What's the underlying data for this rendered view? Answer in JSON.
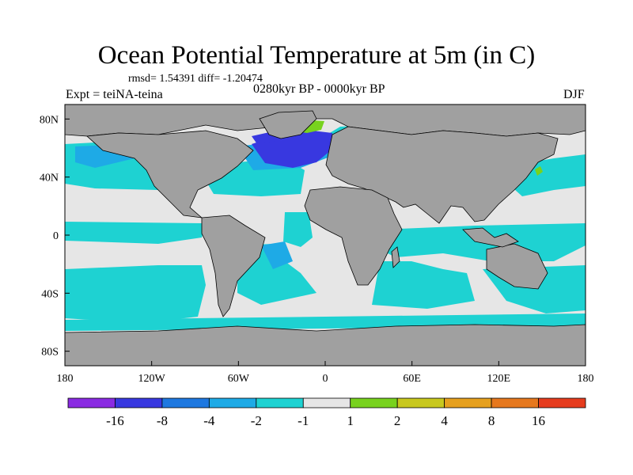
{
  "figure": {
    "title": "Ocean Potential Temperature at 5m (in C)",
    "stats": "rmsd= 1.54391 diff= -1.20474",
    "experiment": "Expt = teiNA-teina",
    "period": "0280kyr BP - 0000kyr BP",
    "season": "DJF"
  },
  "map": {
    "land_color": "#a0a0a0",
    "ocean_neutral_color": "#e6e6e6",
    "lon_ticks": [
      "180",
      "120W",
      "60W",
      "0",
      "60E",
      "120E",
      "180"
    ],
    "lat_ticks": [
      "80N",
      "40N",
      "0",
      "40S",
      "80S"
    ]
  },
  "colorbar": {
    "colors": [
      "#8a2be2",
      "#3838e0",
      "#1e78e0",
      "#1eaae6",
      "#1ed2d2",
      "#e6e6e6",
      "#78d21e",
      "#c8c81e",
      "#e6a01e",
      "#e6781e",
      "#e63c1e"
    ],
    "labels": [
      "-16",
      "-8",
      "-4",
      "-2",
      "-1",
      "1",
      "2",
      "4",
      "8",
      "16"
    ]
  },
  "chart_data": {
    "type": "heatmap",
    "title": "Ocean Potential Temperature at 5m (in C)",
    "variable": "ocean potential temperature difference at 5m depth",
    "units": "C",
    "x_range": [
      -180,
      180
    ],
    "y_range": [
      -90,
      90
    ],
    "bins": [
      "< -16",
      "-16 to -8",
      "-8 to -4",
      "-4 to -2",
      "-2 to -1",
      "-1 to 1",
      "1 to 2",
      "2 to 4",
      "4 to 8",
      "8 to 16",
      "> 16"
    ],
    "regions": [
      {
        "name": "North Atlantic subpolar",
        "range": "-8 to -4"
      },
      {
        "name": "Labrador Sea / south of Greenland",
        "range": "-8 to -4"
      },
      {
        "name": "East Greenland coast",
        "range": "1 to 2"
      },
      {
        "name": "NW Pacific off Japan",
        "range": "1 to 2"
      },
      {
        "name": "Tropical oceans",
        "range": "-2 to -1"
      },
      {
        "name": "Subtropical gyres",
        "range": "-1 to 1"
      },
      {
        "name": "Southern Ocean",
        "range": "-2 to -1"
      },
      {
        "name": "Antarctic margin",
        "range": "-1 to 1"
      }
    ],
    "rmsd": 1.54391,
    "diff": -1.20474
  }
}
